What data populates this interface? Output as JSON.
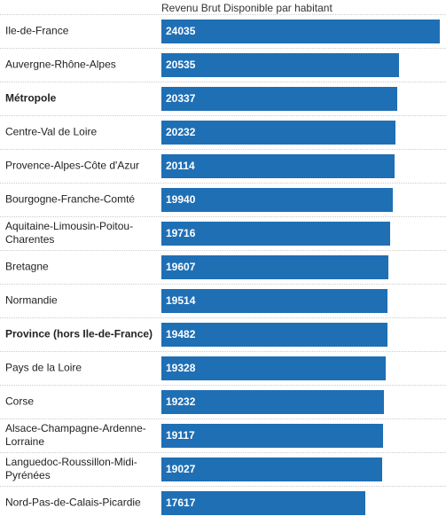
{
  "chart_data": {
    "type": "bar",
    "orientation": "horizontal",
    "title": "Revenu Brut Disponible par habitant",
    "xlim": [
      0,
      24035
    ],
    "rows": [
      {
        "label": "Ile-de-France",
        "value": 24035,
        "bold": false
      },
      {
        "label": "Auvergne-Rhône-Alpes",
        "value": 20535,
        "bold": false
      },
      {
        "label": "Métropole",
        "value": 20337,
        "bold": true
      },
      {
        "label": "Centre-Val de Loire",
        "value": 20232,
        "bold": false
      },
      {
        "label": "Provence-Alpes-Côte d'Azur",
        "value": 20114,
        "bold": false
      },
      {
        "label": "Bourgogne-Franche-Comté",
        "value": 19940,
        "bold": false
      },
      {
        "label": "Aquitaine-Limousin-Poitou-Charentes",
        "value": 19716,
        "bold": false
      },
      {
        "label": "Bretagne",
        "value": 19607,
        "bold": false
      },
      {
        "label": "Normandie",
        "value": 19514,
        "bold": false
      },
      {
        "label": "Province (hors Ile-de-France)",
        "value": 19482,
        "bold": true
      },
      {
        "label": "Pays de la Loire",
        "value": 19328,
        "bold": false
      },
      {
        "label": "Corse",
        "value": 19232,
        "bold": false
      },
      {
        "label": "Alsace-Champagne-Ardenne-Lorraine",
        "value": 19117,
        "bold": false
      },
      {
        "label": "Languedoc-Roussillon-Midi-Pyrénées",
        "value": 19027,
        "bold": false
      },
      {
        "label": "Nord-Pas-de-Calais-Picardie",
        "value": 17617,
        "bold": false
      }
    ],
    "bar_color": "#1f6fb5",
    "value_label_color": "#ffffff"
  }
}
